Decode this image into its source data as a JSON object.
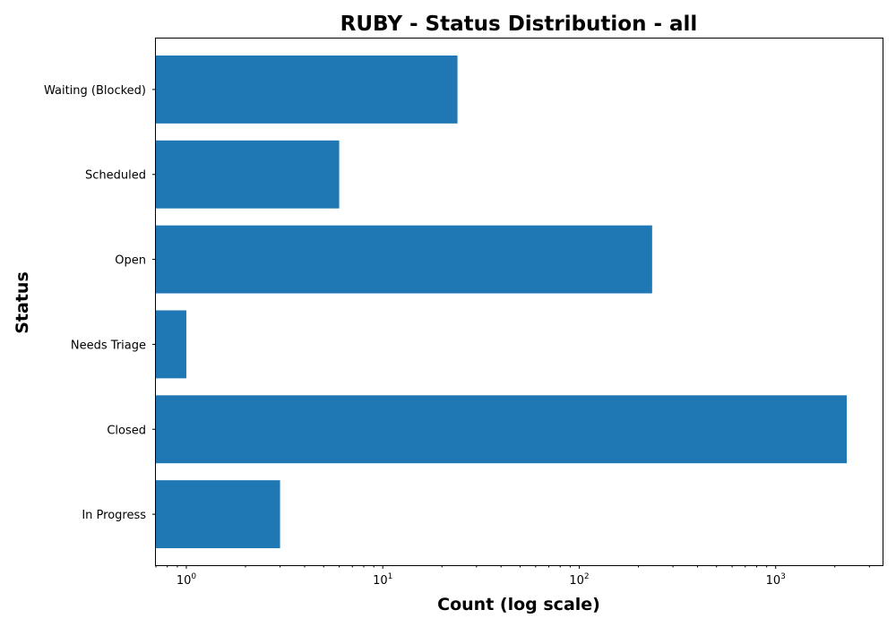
{
  "chart_data": {
    "type": "bar",
    "orientation": "horizontal",
    "title": "RUBY - Status Distribution - all",
    "xlabel": "Count (log scale)",
    "ylabel": "Status",
    "xscale": "log",
    "xlim": [
      0.7,
      3500
    ],
    "categories": [
      "In Progress",
      "Closed",
      "Needs Triage",
      "Open",
      "Scheduled",
      "Waiting (Blocked)"
    ],
    "values": [
      3,
      2300,
      1,
      235,
      6,
      24
    ],
    "major_ticks": [
      {
        "value": 1,
        "base": "10",
        "exp": "0"
      },
      {
        "value": 10,
        "base": "10",
        "exp": "1"
      },
      {
        "value": 100,
        "base": "10",
        "exp": "2"
      },
      {
        "value": 1000,
        "base": "10",
        "exp": "3"
      }
    ],
    "grid": false,
    "bar_color": "#1f77b4"
  }
}
